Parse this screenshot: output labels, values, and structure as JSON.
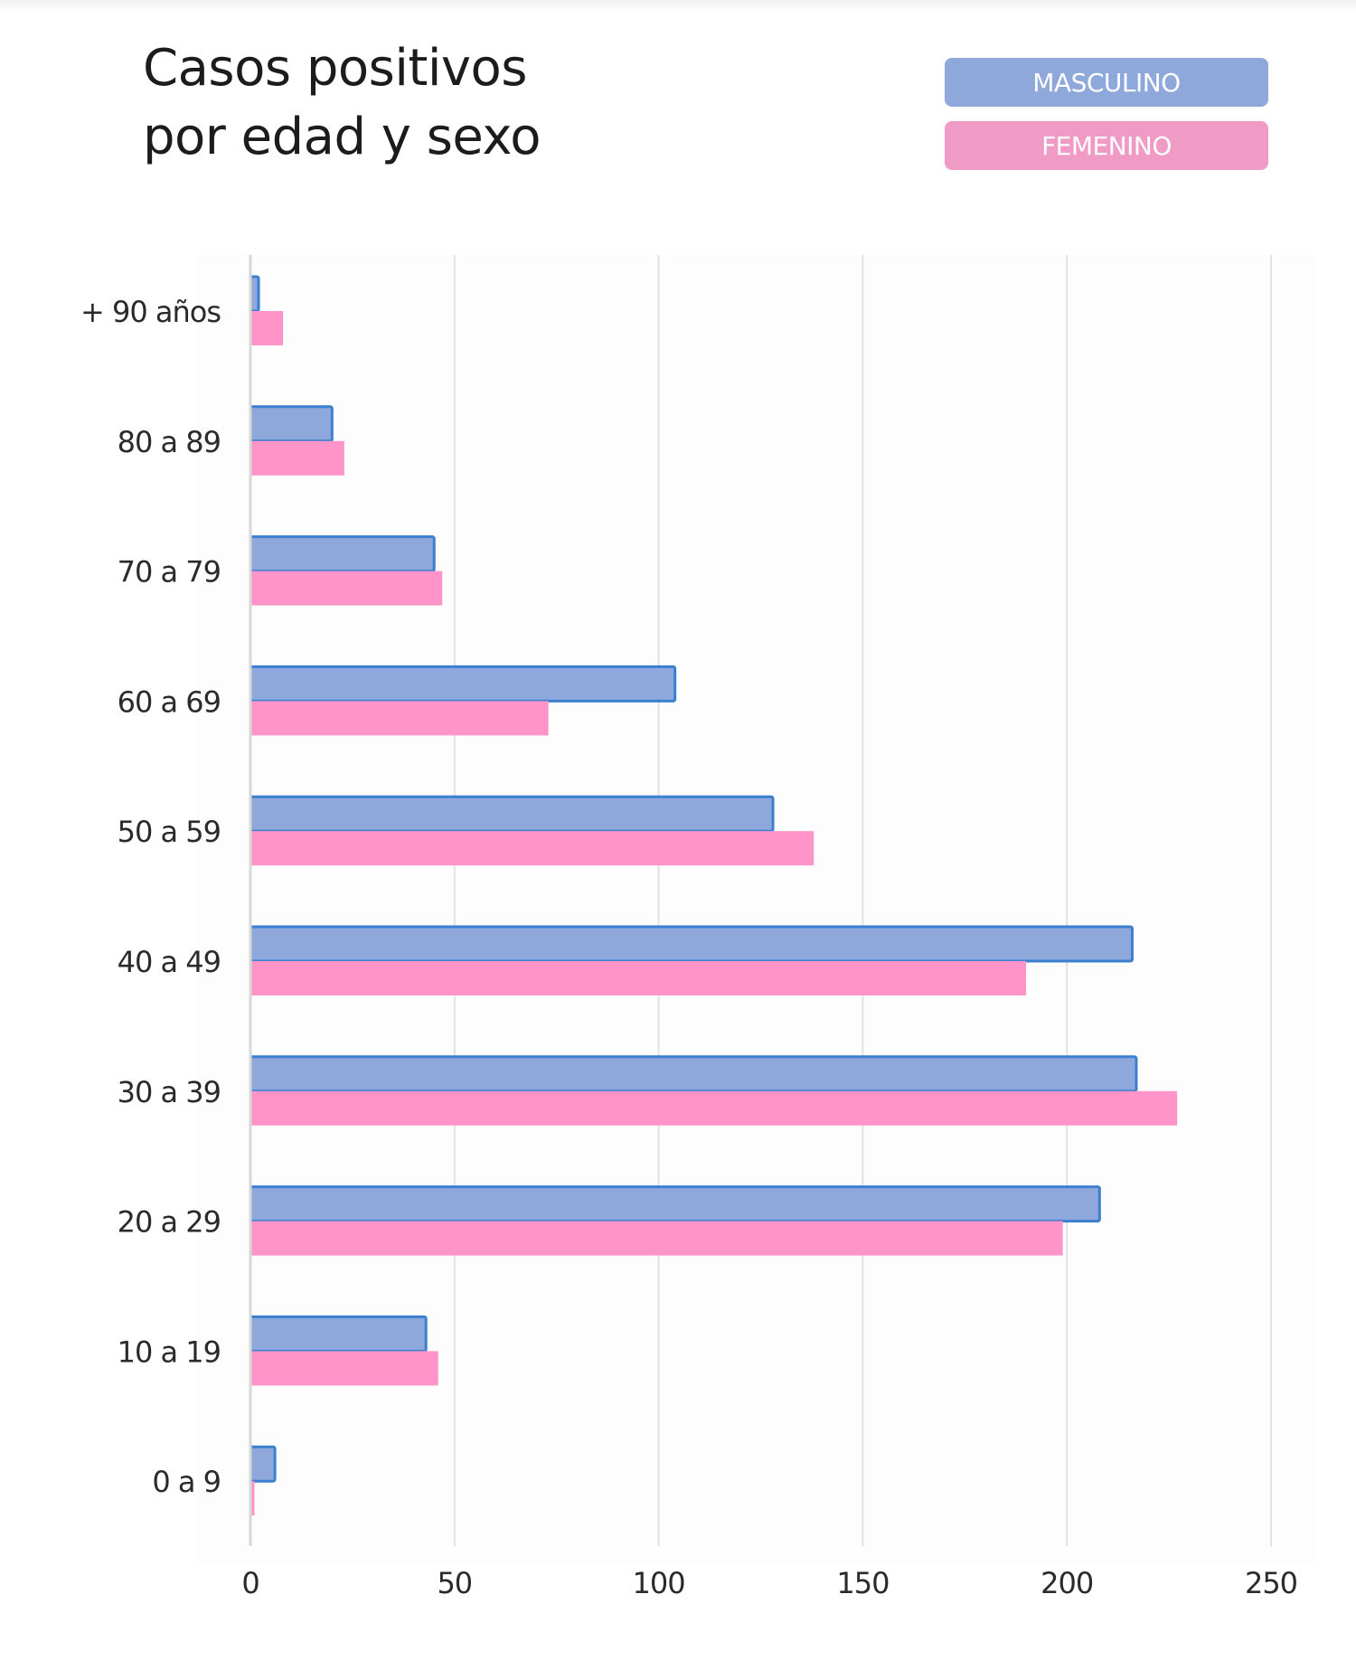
{
  "title_lines": [
    "Casos positivos",
    "por edad y sexo"
  ],
  "legend": [
    {
      "label": "MASCULINO",
      "color": "#8fa8db"
    },
    {
      "label": "FEMENINO",
      "color": "#f09ac6"
    }
  ],
  "chart_data": {
    "type": "bar",
    "orientation": "horizontal",
    "title": "Casos positivos por edad y sexo",
    "xlabel": "",
    "ylabel": "",
    "categories": [
      "+ 90 años",
      "80 a 89",
      "70 a 79",
      "60 a 69",
      "50 a 59",
      "40 a 49",
      "30 a 39",
      "20 a 29",
      "10 a 19",
      "0 a 9"
    ],
    "series": [
      {
        "name": "MASCULINO",
        "color": "#8fa8db",
        "stroke": "#3a7fd0",
        "values": [
          2,
          20,
          45,
          104,
          128,
          216,
          217,
          208,
          43,
          6
        ]
      },
      {
        "name": "FEMENINO",
        "color": "#ff94c8",
        "values": [
          8,
          23,
          47,
          73,
          138,
          190,
          227,
          199,
          46,
          1
        ]
      }
    ],
    "xlim": [
      0,
      250
    ],
    "xticks": [
      0,
      50,
      100,
      150,
      200,
      250
    ],
    "grid": true,
    "legend_position": "top-right"
  }
}
